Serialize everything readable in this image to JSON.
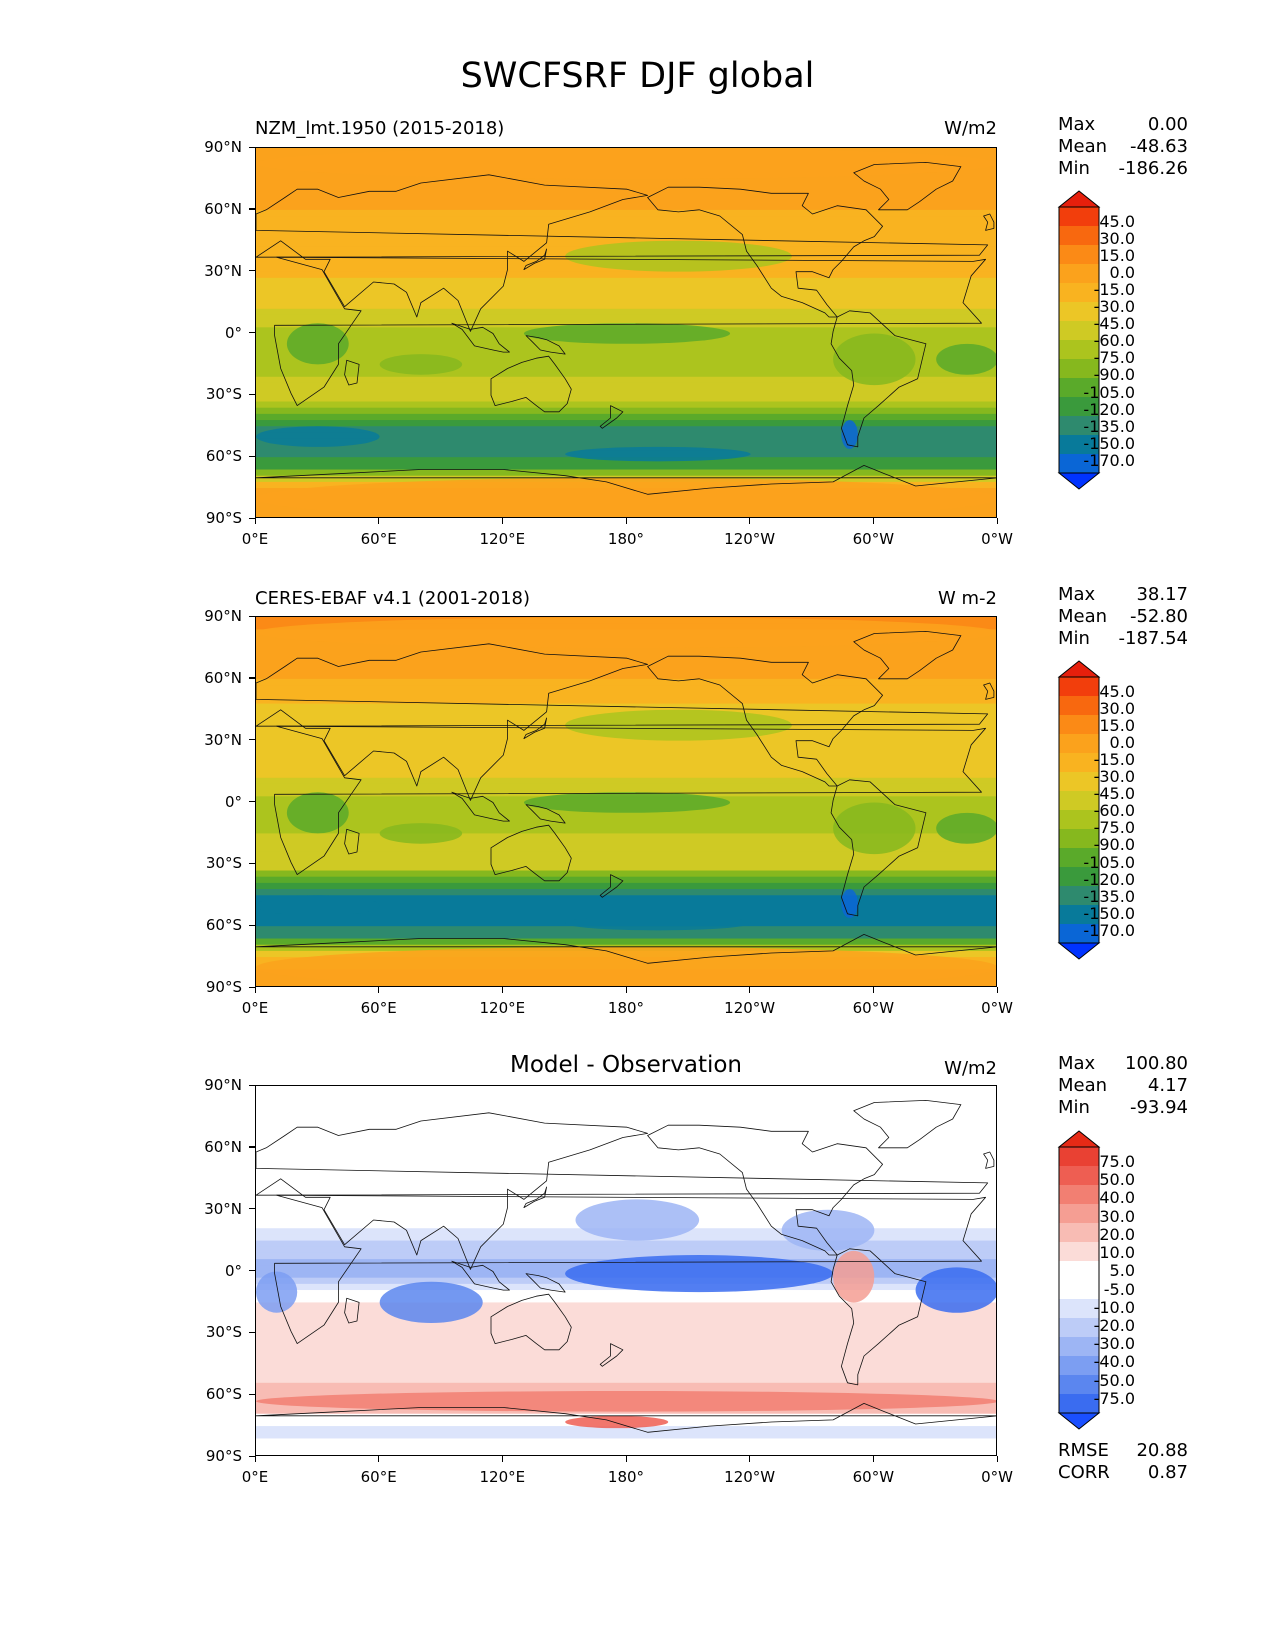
{
  "figure_title": "SWCFSRF DJF global",
  "colors": {
    "main_scale": [
      "#0033ff",
      "#0a66d6",
      "#087a9a",
      "#2e8a6e",
      "#3a9a3c",
      "#5aaa2a",
      "#86b81e",
      "#acc41e",
      "#cfca24",
      "#ecc626",
      "#f9b320",
      "#fba21c",
      "#fb8a16",
      "#f8680f",
      "#f23e0c",
      "#e61f0c"
    ],
    "diff_scale": [
      "#1a4fff",
      "#3a6cf0",
      "#5b86ef",
      "#7c9ef2",
      "#9db5f4",
      "#bdccf7",
      "#dce4fb",
      "#ffffff",
      "#ffffff",
      "#fbdcd8",
      "#f8bcb4",
      "#f59e93",
      "#f27f72",
      "#ee5e52",
      "#e94133",
      "#e62a16"
    ]
  },
  "axes": {
    "y_ticks": [
      "90°N",
      "60°N",
      "30°N",
      "0°",
      "30°S",
      "60°S",
      "90°S"
    ],
    "x_ticks": [
      "0°E",
      "60°E",
      "120°E",
      "180°",
      "120°W",
      "60°W",
      "0°W"
    ]
  },
  "panels": [
    {
      "title": "NZM_lmt.1950 (2015-2018)",
      "units": "W/m2",
      "stats": [
        {
          "label": "Max",
          "value": "0.00"
        },
        {
          "label": "Mean",
          "value": "-48.63"
        },
        {
          "label": "Min",
          "value": "-186.26"
        }
      ],
      "colorbar_labels": [
        "45.0",
        "30.0",
        "15.0",
        "0.0",
        "-15.0",
        "-30.0",
        "-45.0",
        "-60.0",
        "-75.0",
        "-90.0",
        "-105.0",
        "-120.0",
        "-135.0",
        "-150.0",
        "-170.0"
      ]
    },
    {
      "title": "CERES-EBAF v4.1 (2001-2018)",
      "units": "W m-2",
      "stats": [
        {
          "label": "Max",
          "value": "38.17"
        },
        {
          "label": "Mean",
          "value": "-52.80"
        },
        {
          "label": "Min",
          "value": "-187.54"
        }
      ],
      "colorbar_labels": [
        "45.0",
        "30.0",
        "15.0",
        "0.0",
        "-15.0",
        "-30.0",
        "-45.0",
        "-60.0",
        "-75.0",
        "-90.0",
        "-105.0",
        "-120.0",
        "-135.0",
        "-150.0",
        "-170.0"
      ]
    },
    {
      "title": "Model - Observation",
      "units": "W/m2",
      "stats": [
        {
          "label": "Max",
          "value": "100.80"
        },
        {
          "label": "Mean",
          "value": "4.17"
        },
        {
          "label": "Min",
          "value": "-93.94"
        }
      ],
      "colorbar_labels": [
        "75.0",
        "50.0",
        "40.0",
        "30.0",
        "20.0",
        "10.0",
        "5.0",
        "-5.0",
        "-10.0",
        "-20.0",
        "-30.0",
        "-40.0",
        "-50.0",
        "-75.0"
      ],
      "extra_stats": [
        {
          "label": "RMSE",
          "value": "20.88"
        },
        {
          "label": "CORR",
          "value": "0.87"
        }
      ]
    }
  ],
  "chart_data": [
    {
      "type": "heatmap",
      "title": "NZM_lmt.1950 (2015-2018)",
      "variable": "SWCFSRF DJF global",
      "units": "W/m2",
      "xlim": [
        0,
        360
      ],
      "ylim": [
        -90,
        90
      ],
      "x_ticks": [
        "0°E",
        "60°E",
        "120°E",
        "180°",
        "120°W",
        "60°W",
        "0°W"
      ],
      "y_ticks": [
        "90°N",
        "60°N",
        "30°N",
        "0°",
        "30°S",
        "60°S",
        "90°S"
      ],
      "levels": [
        -170,
        -150,
        -135,
        -120,
        -105,
        -90,
        -75,
        -60,
        -45,
        -30,
        -15,
        0,
        15,
        30,
        45
      ],
      "zonal_mean_profile": {
        "lat": [
          90,
          75,
          60,
          45,
          30,
          15,
          0,
          -15,
          -30,
          -45,
          -55,
          -65,
          -75,
          -90
        ],
        "value": [
          -8,
          -10,
          -14,
          -30,
          -28,
          -35,
          -70,
          -70,
          -50,
          -120,
          -135,
          -110,
          -15,
          -5
        ]
      },
      "stats": {
        "max": 0.0,
        "mean": -48.63,
        "min": -186.26
      }
    },
    {
      "type": "heatmap",
      "title": "CERES-EBAF v4.1 (2001-2018)",
      "variable": "SWCFSRF DJF global",
      "units": "W m-2",
      "xlim": [
        0,
        360
      ],
      "ylim": [
        -90,
        90
      ],
      "x_ticks": [
        "0°E",
        "60°E",
        "120°E",
        "180°",
        "120°W",
        "60°W",
        "0°W"
      ],
      "y_ticks": [
        "90°N",
        "60°N",
        "30°N",
        "0°",
        "30°S",
        "60°S",
        "90°S"
      ],
      "levels": [
        -170,
        -150,
        -135,
        -120,
        -105,
        -90,
        -75,
        -60,
        -45,
        -30,
        -15,
        0,
        15,
        30,
        45
      ],
      "zonal_mean_profile": {
        "lat": [
          90,
          75,
          60,
          45,
          30,
          15,
          0,
          -15,
          -30,
          -45,
          -55,
          -65,
          -75,
          -90
        ],
        "value": [
          5,
          -8,
          -15,
          -35,
          -30,
          -40,
          -65,
          -60,
          -50,
          -135,
          -150,
          -120,
          -20,
          -5
        ]
      },
      "stats": {
        "max": 38.17,
        "mean": -52.8,
        "min": -187.54
      }
    },
    {
      "type": "heatmap",
      "title": "Model - Observation",
      "variable": "SWCFSRF DJF global",
      "units": "W/m2",
      "xlim": [
        0,
        360
      ],
      "ylim": [
        -90,
        90
      ],
      "x_ticks": [
        "0°E",
        "60°E",
        "120°E",
        "180°",
        "120°W",
        "60°W",
        "0°W"
      ],
      "y_ticks": [
        "90°N",
        "60°N",
        "30°N",
        "0°",
        "30°S",
        "60°S",
        "90°S"
      ],
      "levels": [
        -75,
        -50,
        -40,
        -30,
        -20,
        -10,
        -5,
        5,
        10,
        20,
        30,
        40,
        50,
        75
      ],
      "zonal_mean_profile": {
        "lat": [
          90,
          75,
          60,
          45,
          30,
          15,
          0,
          -15,
          -30,
          -45,
          -55,
          -65,
          -75,
          -90
        ],
        "value": [
          -5,
          -5,
          8,
          5,
          0,
          -10,
          -25,
          10,
          12,
          15,
          20,
          30,
          -10,
          0
        ]
      },
      "stats": {
        "max": 100.8,
        "mean": 4.17,
        "min": -93.94,
        "rmse": 20.88,
        "corr": 0.87
      }
    }
  ]
}
